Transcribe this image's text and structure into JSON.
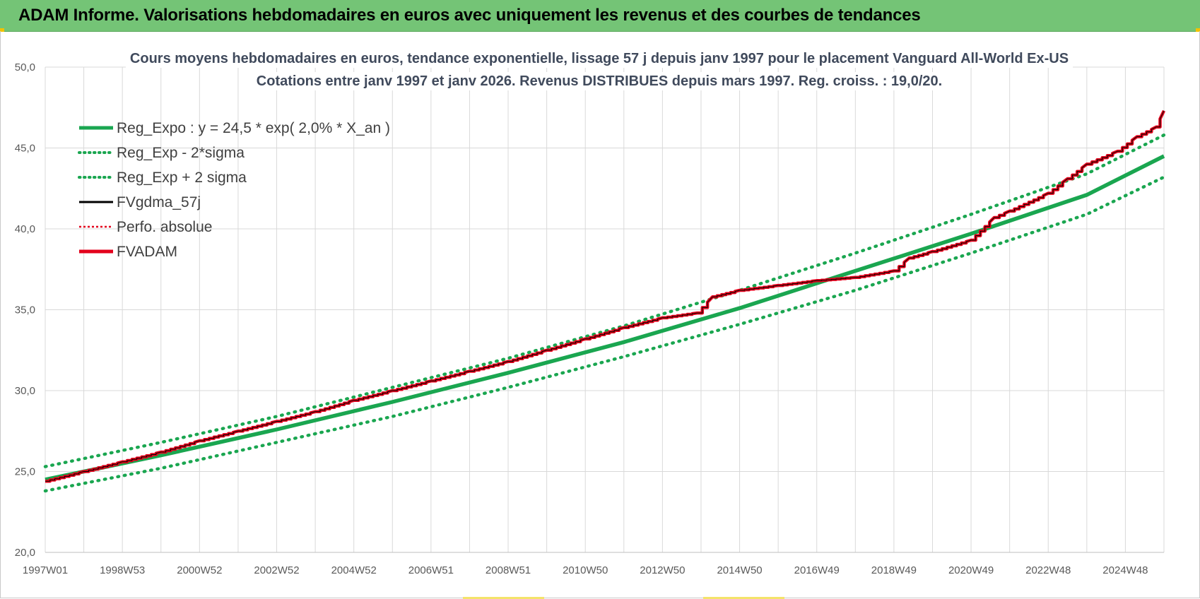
{
  "banner": {
    "title": "ADAM Informe. Valorisations hebdomadaires en euros avec uniquement les revenus et des courbes de tendances"
  },
  "colors": {
    "banner_bg": "#74c476",
    "reg_expo": "#1aa650",
    "sigma_lines": "#1aa650",
    "fvgdma": "#000000",
    "perfo": "#e3001b",
    "fvadam": "#e3001b",
    "grid": "#d9d9d9"
  },
  "chart_data": {
    "type": "line",
    "title_lines": [
      "Cours moyens hebdomadaires en euros, tendance exponentielle, lissage 57 j depuis janv 1997 pour le placement Vanguard All-World Ex-US",
      "Cotations entre janv 1997 et janv 2026. Revenus DISTRIBUES depuis mars 1997. Reg. croiss. : 19,0/20."
    ],
    "x_tick_labels": [
      "1997W01",
      "1998W53",
      "2000W52",
      "2002W52",
      "2004W52",
      "2006W51",
      "2008W51",
      "2010W50",
      "2012W50",
      "2014W50",
      "2016W49",
      "2018W49",
      "2020W49",
      "2022W48",
      "2024W48"
    ],
    "x_tick_years": [
      1997.0,
      1999.0,
      2001.0,
      2003.0,
      2005.0,
      2007.0,
      2009.0,
      2011.0,
      2013.0,
      2015.0,
      2017.0,
      2019.0,
      2021.0,
      2023.0,
      2025.0
    ],
    "x_range": [
      1997.0,
      2026.0
    ],
    "y_tick_labels": [
      "20,0",
      "25,0",
      "30,0",
      "35,0",
      "40,0",
      "45,0",
      "50,0"
    ],
    "y_ticks": [
      20,
      25,
      30,
      35,
      40,
      45,
      50
    ],
    "ylim": [
      20,
      50
    ],
    "grid": true,
    "legend_position": "top-left",
    "legend": [
      {
        "label": "Reg_Expo : y = 24,5 * exp( 2,0% *  X_an )",
        "style": "solid-thick",
        "color": "#1aa650"
      },
      {
        "label": "Reg_Exp - 2*sigma",
        "style": "dotted",
        "color": "#1aa650"
      },
      {
        "label": "Reg_Exp + 2 sigma",
        "style": "dotted",
        "color": "#1aa650"
      },
      {
        "label": "FVgdma_57j",
        "style": "solid",
        "color": "#000000"
      },
      {
        "label": "Perfo. absolue",
        "style": "dotted-thin",
        "color": "#e3001b"
      },
      {
        "label": "FVADAM",
        "style": "solid-thick",
        "color": "#e3001b"
      }
    ],
    "series": [
      {
        "name": "Reg_Expo : y = 24,5 * exp( 2,0% *  X_an )",
        "x": [
          1997.0,
          2000.0,
          2003.0,
          2006.0,
          2009.0,
          2012.0,
          2015.0,
          2018.0,
          2021.0,
          2024.0,
          2026.0
        ],
        "y": [
          24.5,
          26.0,
          27.6,
          29.3,
          31.1,
          33.0,
          35.1,
          37.4,
          39.7,
          42.1,
          44.5
        ]
      },
      {
        "name": "Reg_Exp - 2*sigma",
        "x": [
          1997.0,
          2000.0,
          2003.0,
          2006.0,
          2009.0,
          2012.0,
          2015.0,
          2018.0,
          2021.0,
          2024.0,
          2026.0
        ],
        "y": [
          23.8,
          25.2,
          26.8,
          28.4,
          30.2,
          32.1,
          34.1,
          36.2,
          38.5,
          40.9,
          43.2
        ]
      },
      {
        "name": "Reg_Exp + 2 sigma",
        "x": [
          1997.0,
          2000.0,
          2003.0,
          2006.0,
          2009.0,
          2012.0,
          2015.0,
          2018.0,
          2021.0,
          2024.0,
          2026.0
        ],
        "y": [
          25.3,
          26.8,
          28.4,
          30.2,
          32.0,
          34.0,
          36.2,
          38.5,
          40.9,
          43.4,
          45.8
        ]
      },
      {
        "name": "FVADAM",
        "x": [
          1997.0,
          1998.0,
          1999.0,
          2000.0,
          2001.0,
          2002.0,
          2003.0,
          2004.0,
          2005.0,
          2006.0,
          2007.0,
          2008.0,
          2009.0,
          2010.0,
          2011.0,
          2012.0,
          2013.0,
          2013.9,
          2014.3,
          2015.0,
          2016.0,
          2017.0,
          2018.0,
          2019.0,
          2019.4,
          2020.0,
          2021.0,
          2021.6,
          2022.0,
          2023.0,
          2023.5,
          2024.0,
          2024.8,
          2025.3,
          2025.8,
          2026.0
        ],
        "y": [
          24.4,
          25.0,
          25.6,
          26.2,
          26.9,
          27.5,
          28.1,
          28.7,
          29.4,
          30.0,
          30.6,
          31.2,
          31.8,
          32.5,
          33.2,
          33.9,
          34.5,
          34.8,
          35.8,
          36.2,
          36.5,
          36.8,
          37.0,
          37.4,
          38.2,
          38.6,
          39.3,
          40.7,
          41.1,
          42.2,
          43.1,
          44.0,
          44.8,
          45.7,
          46.3,
          47.3
        ]
      }
    ]
  }
}
